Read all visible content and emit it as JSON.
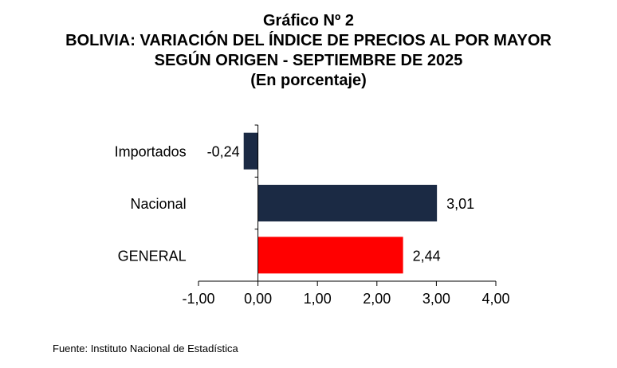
{
  "figure": {
    "number_title": "Gráfico Nº 2",
    "title_line1": "BOLIVIA: VARIACIÓN DEL ÍNDICE DE PRECIOS AL POR MAYOR",
    "title_line2": "SEGÚN ORIGEN - SEPTIEMBRE DE 2025",
    "subtitle": "(En porcentaje)",
    "source": "Fuente: Instituto Nacional de Estadística"
  },
  "chart_data": {
    "type": "bar",
    "orientation": "horizontal",
    "categories": [
      "Importados",
      "Nacional",
      "GENERAL"
    ],
    "values": [
      -0.24,
      3.01,
      2.44
    ],
    "value_labels": [
      "-0,24",
      "3,01",
      "2,44"
    ],
    "bar_colors": [
      "#1b2a44",
      "#1b2a44",
      "#ff0000"
    ],
    "xlim": [
      -1,
      4
    ],
    "x_ticks": [
      -1,
      0,
      1,
      2,
      3,
      4
    ],
    "x_tick_labels": [
      "-1,00",
      "0,00",
      "1,00",
      "2,00",
      "3,00",
      "4,00"
    ],
    "grid": false,
    "legend": "none",
    "xlabel": "",
    "ylabel": ""
  }
}
